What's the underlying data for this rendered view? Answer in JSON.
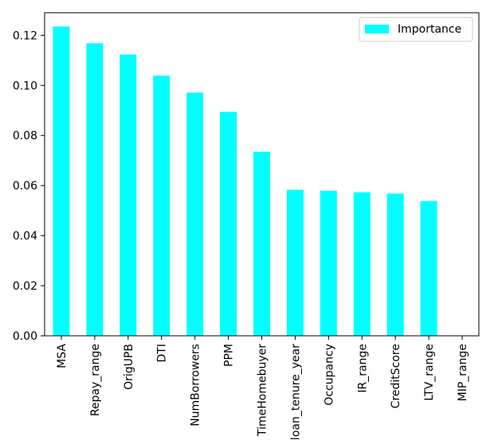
{
  "chart_data": {
    "type": "bar",
    "categories": [
      "MSA",
      "Repay_range",
      "OrigUPB",
      "DTI",
      "NumBorrowers",
      "PPM",
      "TimeHomebuyer",
      "loan_tenure_year",
      "Occupancy",
      "IR_range",
      "CreditScore",
      "LTV_range",
      "MIP_range"
    ],
    "series": [
      {
        "name": "Importance",
        "values": [
          0.1235,
          0.1168,
          0.1123,
          0.1039,
          0.0971,
          0.0894,
          0.0735,
          0.0583,
          0.0579,
          0.0573,
          0.0568,
          0.0538,
          0.0
        ]
      }
    ],
    "ylim": [
      0,
      0.129
    ],
    "yticks": [
      0.0,
      0.02,
      0.04,
      0.06,
      0.08,
      0.1,
      0.12
    ],
    "ytick_labels": [
      "0.00",
      "0.02",
      "0.04",
      "0.06",
      "0.08",
      "0.10",
      "0.12"
    ],
    "title": "",
    "xlabel": "",
    "ylabel": "",
    "legend_position": "top-right",
    "grid": false,
    "colors": {
      "bar": "#00ffff",
      "axis": "#000000"
    }
  }
}
